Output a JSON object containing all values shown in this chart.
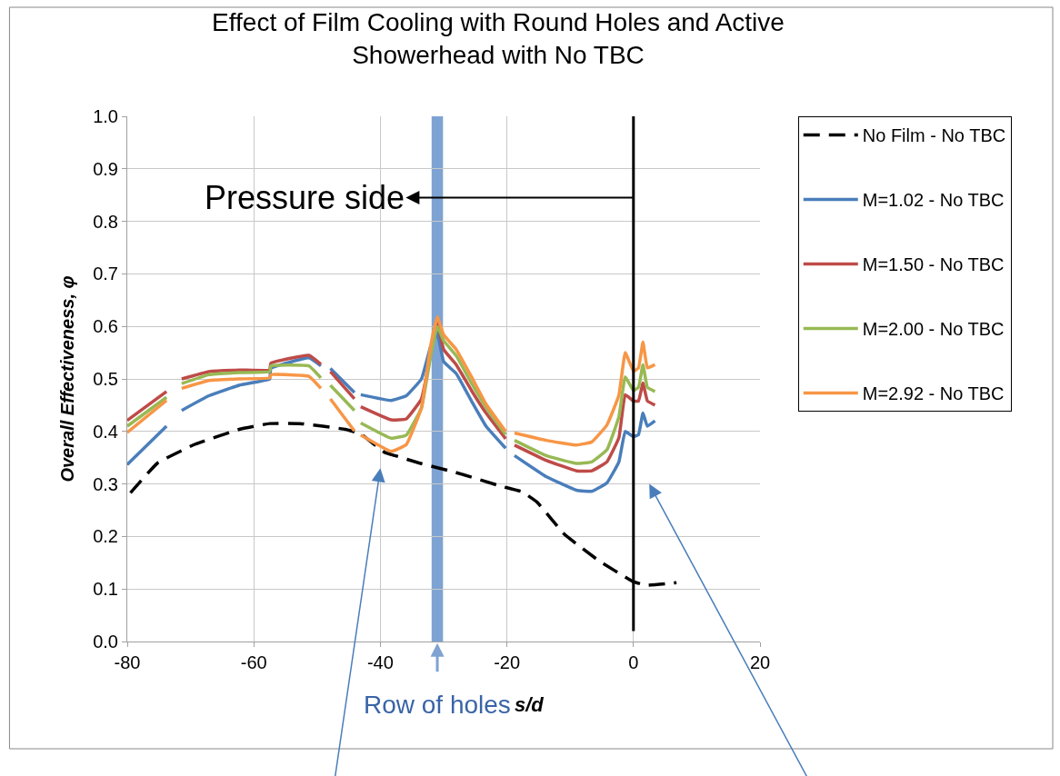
{
  "chart_data": {
    "type": "line",
    "title": "Effect of Film Cooling with Round Holes and Active Showerhead with No TBC",
    "xlabel": "s/d",
    "ylabel": "Overall Effectiveness, φ",
    "x": [
      -80,
      -73.8,
      -72.6,
      -71.4,
      -67.1,
      -62.3,
      -57.5,
      -57.3,
      -51.3,
      -49.4,
      -48.6,
      -47.9,
      -44.1,
      -43.6,
      -43.1,
      -38.3,
      -35.9,
      -33.5,
      -32.1,
      -31,
      -30,
      -28,
      -25.6,
      -23.3,
      -20.2,
      -19.5,
      -18.8,
      -13.8,
      -9,
      -6.6,
      -4.2,
      -2.3,
      -1.3,
      0,
      0.8,
      1.5,
      2.2,
      3.4
    ],
    "series": [
      {
        "name": "No Film - No TBC",
        "color": "#000000",
        "line_style": "dashed",
        "x": [
          -79.5,
          -75.2,
          -69.4,
          -62.3,
          -57.5,
          -52.7,
          -45.5,
          -43.1,
          -39.3,
          -37.7,
          -33.9,
          -28.1,
          -21,
          -17.6,
          -15.2,
          -10.9,
          -5.6,
          -0.2,
          2.0,
          6.8
        ],
        "values": [
          0.283,
          0.34,
          0.375,
          0.404,
          0.415,
          0.415,
          0.404,
          0.395,
          0.36,
          0.354,
          0.34,
          0.322,
          0.296,
          0.285,
          0.265,
          0.204,
          0.155,
          0.115,
          0.107,
          0.112
        ]
      },
      {
        "name": "M=1.02 - No TBC",
        "color": "#4a7ebb",
        "values": [
          0.337,
          0.41,
          null,
          0.44,
          0.468,
          0.488,
          0.5,
          0.52,
          0.54,
          0.525,
          null,
          0.52,
          0.474,
          null,
          0.47,
          0.459,
          0.468,
          0.5,
          0.56,
          0.587,
          0.533,
          0.51,
          0.458,
          0.41,
          0.368,
          null,
          0.354,
          0.314,
          0.288,
          0.286,
          0.302,
          0.342,
          0.4,
          0.39,
          0.394,
          0.435,
          0.41,
          0.42
        ]
      },
      {
        "name": "M=1.50 - No TBC",
        "color": "#be4b48",
        "values": [
          0.421,
          0.476,
          null,
          0.5,
          0.514,
          0.517,
          0.517,
          0.53,
          0.545,
          0.528,
          null,
          0.514,
          0.462,
          null,
          0.447,
          0.422,
          0.424,
          0.462,
          0.543,
          0.607,
          0.556,
          0.527,
          0.478,
          0.435,
          0.386,
          null,
          0.374,
          0.345,
          0.325,
          0.325,
          0.342,
          0.388,
          0.47,
          0.458,
          0.458,
          0.492,
          0.458,
          0.45
        ]
      },
      {
        "name": "M=2.00 - No TBC",
        "color": "#98b954",
        "values": [
          0.41,
          0.465,
          null,
          0.491,
          0.508,
          0.512,
          0.514,
          0.525,
          0.525,
          0.502,
          null,
          0.488,
          0.44,
          null,
          0.416,
          0.387,
          0.393,
          0.445,
          0.54,
          0.6,
          0.573,
          0.544,
          0.492,
          0.446,
          0.394,
          null,
          0.383,
          0.354,
          0.339,
          0.342,
          0.365,
          0.428,
          0.504,
          0.478,
          0.484,
          0.527,
          0.484,
          0.476
        ]
      },
      {
        "name": "M=2.92 - No TBC",
        "color": "#f79646",
        "values": [
          0.398,
          0.459,
          null,
          0.482,
          0.497,
          0.5,
          0.502,
          0.508,
          0.505,
          0.482,
          null,
          0.462,
          0.401,
          null,
          0.393,
          0.362,
          0.375,
          0.445,
          0.56,
          0.618,
          0.584,
          0.556,
          0.504,
          0.452,
          0.4,
          null,
          0.397,
          0.383,
          0.374,
          0.38,
          0.412,
          0.469,
          0.55,
          0.515,
          0.521,
          0.57,
          0.521,
          0.527
        ]
      }
    ],
    "xlim": [
      -80,
      20
    ],
    "xticks": [
      -80,
      -60,
      -40,
      -20,
      0,
      20
    ],
    "ylim": [
      0,
      1
    ],
    "yticks": [
      {
        "value": 0,
        "label": "0.0"
      },
      {
        "value": 0.1,
        "label": "0.1"
      },
      {
        "value": 0.2,
        "label": "0.2"
      },
      {
        "value": 0.3,
        "label": "0.3"
      },
      {
        "value": 0.4,
        "label": "0.4"
      },
      {
        "value": 0.5,
        "label": "0.5"
      },
      {
        "value": 0.6,
        "label": "0.6"
      },
      {
        "value": 0.7,
        "label": "0.7"
      },
      {
        "value": 0.8,
        "label": "0.8"
      },
      {
        "value": 0.9,
        "label": "0.9"
      },
      {
        "value": 1,
        "label": "1.0"
      }
    ],
    "grid": true,
    "legend": "right",
    "line_style": "solid",
    "marker": "none",
    "ref_lines": [
      {
        "axis": "x",
        "value": 0,
        "color": "#000000"
      }
    ],
    "bands": [
      {
        "axis": "x",
        "from": -31.9,
        "to": -30.1,
        "color": "#7ea3d2",
        "label": "Row of holes"
      }
    ],
    "annotations": [
      "Pressure side"
    ]
  }
}
